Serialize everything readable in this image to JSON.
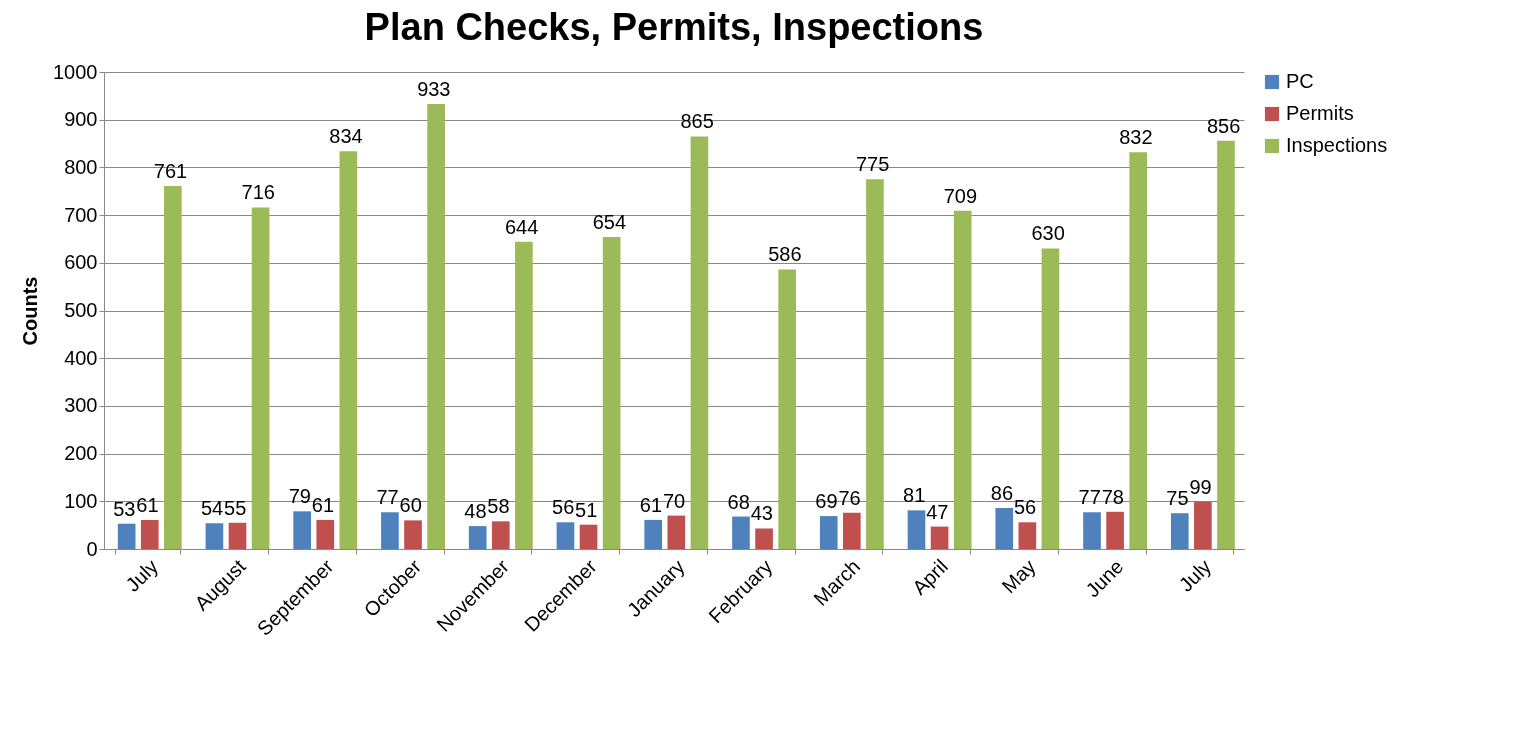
{
  "chart_data": {
    "type": "bar",
    "title": "Plan Checks, Permits, Inspections",
    "ylabel": "Counts",
    "categories": [
      "July",
      "August",
      "September",
      "October",
      "November",
      "December",
      "January",
      "February",
      "March",
      "April",
      "May",
      "June",
      "July"
    ],
    "series": [
      {
        "name": "PC",
        "color": "#4f81bd",
        "values": [
          53,
          54,
          79,
          77,
          48,
          56,
          61,
          68,
          69,
          81,
          86,
          77,
          75
        ]
      },
      {
        "name": "Permits",
        "color": "#c0504d",
        "values": [
          61,
          55,
          61,
          60,
          58,
          51,
          70,
          43,
          76,
          47,
          56,
          78,
          99
        ]
      },
      {
        "name": "Inspections",
        "color": "#9bbb59",
        "values": [
          761,
          716,
          834,
          933,
          644,
          654,
          865,
          586,
          775,
          709,
          630,
          832,
          856
        ]
      }
    ],
    "ylim": [
      0,
      1000
    ],
    "yticks": [
      0,
      100,
      200,
      300,
      400,
      500,
      600,
      700,
      800,
      900,
      1000
    ],
    "grid": "y",
    "legend": "right",
    "data_labels": true
  }
}
